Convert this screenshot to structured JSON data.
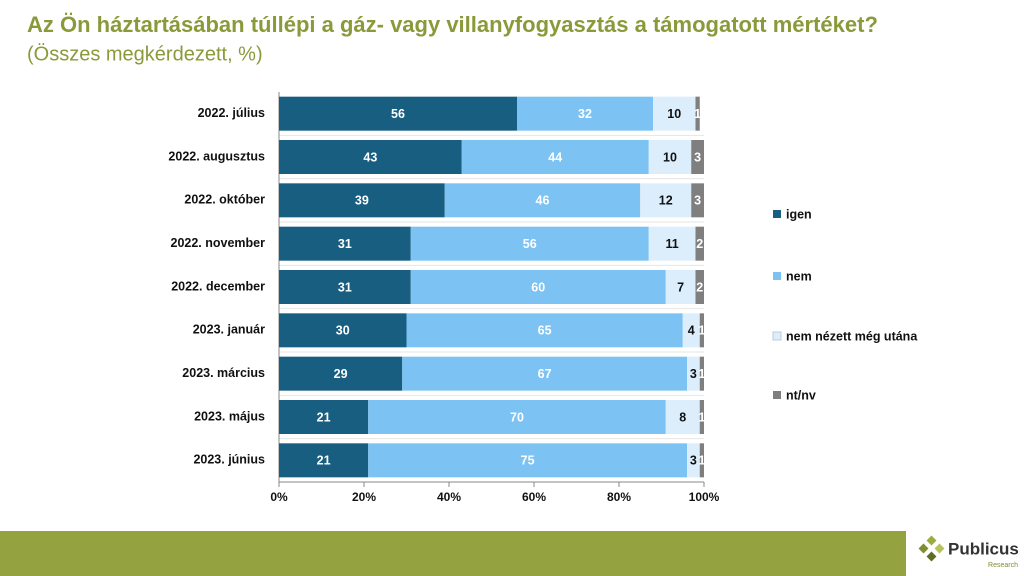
{
  "chart_data": {
    "type": "bar",
    "orientation": "horizontal",
    "stacked": true,
    "title": "Az Ön háztartásában túllépi a gáz- vagy villanyfogyasztás a támogatott mértéket?",
    "subtitle": "(Összes megkérdezett, %)",
    "categories": [
      "2022. július",
      "2022. augusztus",
      "2022. október",
      "2022. november",
      "2022. december",
      "2023. január",
      "2023. március",
      "2023. május",
      "2023. június"
    ],
    "series": [
      {
        "name": "igen",
        "color": "#175e80",
        "values": [
          56,
          43,
          39,
          31,
          31,
          30,
          29,
          21,
          21
        ]
      },
      {
        "name": "nem",
        "color": "#7cc3f3",
        "values": [
          32,
          44,
          46,
          56,
          60,
          65,
          67,
          70,
          75
        ]
      },
      {
        "name": "nem nézett még utána",
        "color": "#dcEEfb",
        "values": [
          10,
          10,
          12,
          11,
          7,
          4,
          3,
          8,
          3
        ]
      },
      {
        "name": "nt/nv",
        "color": "#7f7f7f",
        "values": [
          1,
          3,
          3,
          2,
          2,
          1,
          1,
          1,
          1
        ]
      }
    ],
    "xlim": [
      0,
      100
    ],
    "xticks": [
      {
        "value": 0,
        "label": "0%"
      },
      {
        "value": 20,
        "label": "20%"
      },
      {
        "value": 40,
        "label": "40%"
      },
      {
        "value": 60,
        "label": "60%"
      },
      {
        "value": 80,
        "label": "80%"
      },
      {
        "value": 100,
        "label": "100%"
      }
    ],
    "legend": "right",
    "grid": false
  },
  "logo": {
    "name": "Publicus",
    "sub": "Research"
  }
}
